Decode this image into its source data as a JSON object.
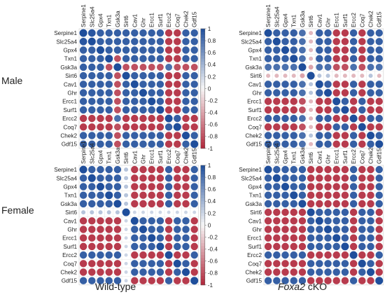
{
  "row_labels": [
    "Male",
    "Female"
  ],
  "col_labels": {
    "wildtype": "Wild-type",
    "cko_gene": "Foxa2",
    "cko_suffix": " cKO"
  },
  "colorbar_ticks": [
    "1",
    "0.8",
    "0.6",
    "0.4",
    "0.2",
    "0",
    "-0.2",
    "-0.4",
    "-0.6",
    "-0.8",
    "-1"
  ],
  "colors": {
    "positive": "#1f4e9b",
    "negative": "#b0263a",
    "zero": "#f7f7f7"
  },
  "chart_data": [
    {
      "type": "heatmap",
      "panel": "Male / Wild-type",
      "genes": [
        "Serpine1",
        "Slc25a4",
        "Gpx4",
        "Txn1",
        "Gsk3a",
        "Sirt6",
        "Cav1",
        "Ghr",
        "Ercc1",
        "Surf1",
        "Ercc2",
        "Coq7",
        "Chek2",
        "Gdf15"
      ],
      "value_range": [
        -1,
        1
      ],
      "matrix": [
        [
          1,
          0.95,
          0.9,
          0.9,
          0.9,
          0.9,
          0.9,
          0.9,
          0.9,
          0.9,
          -0.9,
          -0.9,
          0.9,
          0.9
        ],
        [
          0.95,
          1,
          0.9,
          0.9,
          0.9,
          0.9,
          0.9,
          0.9,
          0.9,
          0.9,
          -0.9,
          -0.9,
          0.9,
          0.9
        ],
        [
          0.9,
          0.9,
          1,
          0.9,
          0.9,
          0.9,
          0.9,
          0.9,
          0.9,
          0.9,
          -0.9,
          -0.9,
          0.9,
          0.9
        ],
        [
          0.9,
          0.9,
          0.9,
          1,
          -0.8,
          0.9,
          0.9,
          0.9,
          0.9,
          0.9,
          -0.9,
          -0.9,
          0.9,
          0.9
        ],
        [
          0.9,
          0.9,
          0.9,
          -0.8,
          1,
          -0.8,
          -0.8,
          -0.8,
          -0.8,
          -0.8,
          0.8,
          -0.8,
          -0.8,
          -0.8
        ],
        [
          0.9,
          0.9,
          0.9,
          0.9,
          -0.8,
          1,
          0.9,
          0.9,
          0.9,
          0.9,
          -0.9,
          -0.9,
          0.9,
          0.9
        ],
        [
          0.9,
          0.9,
          0.9,
          0.9,
          -0.8,
          0.9,
          1,
          0.9,
          0.9,
          0.9,
          -0.9,
          -0.9,
          0.9,
          0.9
        ],
        [
          0.9,
          0.9,
          0.9,
          0.9,
          -0.8,
          0.9,
          0.9,
          1,
          0.9,
          0.9,
          -0.9,
          -0.9,
          0.9,
          0.9
        ],
        [
          0.9,
          0.9,
          0.9,
          0.9,
          -0.8,
          0.9,
          0.9,
          0.9,
          1,
          0.9,
          -0.9,
          -0.9,
          0.9,
          0.9
        ],
        [
          0.9,
          0.9,
          0.9,
          0.9,
          -0.8,
          0.9,
          0.9,
          0.9,
          0.9,
          1,
          -0.9,
          -0.9,
          0.9,
          0.9
        ],
        [
          -0.9,
          -0.9,
          -0.9,
          -0.9,
          0.8,
          -0.9,
          -0.9,
          -0.9,
          -0.9,
          -0.9,
          1,
          0.9,
          -0.9,
          -0.9
        ],
        [
          -0.9,
          -0.9,
          -0.9,
          -0.9,
          -0.8,
          -0.9,
          -0.9,
          -0.9,
          -0.9,
          -0.9,
          0.9,
          1,
          -0.9,
          -0.9
        ],
        [
          0.9,
          0.9,
          0.9,
          0.9,
          -0.8,
          0.9,
          0.9,
          0.9,
          0.9,
          0.9,
          -0.9,
          -0.9,
          1,
          0.9
        ],
        [
          0.9,
          0.9,
          0.9,
          0.9,
          -0.8,
          0.9,
          0.9,
          0.9,
          0.9,
          0.9,
          -0.9,
          -0.9,
          0.9,
          1
        ]
      ]
    },
    {
      "type": "heatmap",
      "panel": "Male / Foxa2 cKO",
      "genes": [
        "Serpine1",
        "Slc25a4",
        "Gpx4",
        "Txn1",
        "Gsk3a",
        "Sirt6",
        "Cav1",
        "Ghr",
        "Ercc1",
        "Surf1",
        "Ercc2",
        "Coq7",
        "Chek2",
        "Gdf15"
      ],
      "value_range": [
        -1,
        1
      ],
      "matrix": [
        [
          1,
          0.9,
          0.9,
          0.9,
          0.8,
          -0.3,
          0.9,
          0.9,
          -0.9,
          -0.9,
          0.9,
          -0.9,
          0.9,
          0.9
        ],
        [
          0.9,
          1,
          0.9,
          0.9,
          0.8,
          -0.3,
          0.9,
          0.9,
          -0.9,
          -0.9,
          0.9,
          -0.9,
          0.9,
          0.9
        ],
        [
          0.9,
          0.9,
          1,
          0.9,
          0.8,
          -0.3,
          0.9,
          0.9,
          -0.9,
          -0.9,
          0.9,
          -0.9,
          0.9,
          0.9
        ],
        [
          0.9,
          0.9,
          0.9,
          1,
          0.8,
          -0.3,
          0.9,
          0.9,
          -0.9,
          -0.9,
          0.9,
          -0.9,
          0.9,
          0.9
        ],
        [
          0.8,
          0.8,
          0.8,
          0.8,
          1,
          -0.4,
          0.8,
          0.8,
          -0.8,
          -0.8,
          0.8,
          -0.8,
          0.8,
          0.8
        ],
        [
          -0.3,
          -0.3,
          -0.3,
          -0.3,
          -0.4,
          1,
          0.3,
          0.3,
          -0.3,
          -0.3,
          -0.3,
          -0.3,
          0.3,
          -0.3
        ],
        [
          0.9,
          0.9,
          0.9,
          0.9,
          0.8,
          0.3,
          1,
          0.9,
          -0.9,
          -0.9,
          0.9,
          -0.9,
          0.9,
          0.9
        ],
        [
          0.9,
          0.9,
          0.9,
          0.9,
          0.8,
          0.3,
          0.9,
          1,
          -0.9,
          -0.9,
          0.9,
          -0.9,
          0.9,
          0.9
        ],
        [
          -0.9,
          -0.9,
          -0.9,
          -0.9,
          -0.8,
          -0.3,
          -0.9,
          -0.9,
          1,
          0.9,
          -0.9,
          0.9,
          -0.9,
          -0.9
        ],
        [
          -0.9,
          -0.9,
          -0.9,
          -0.9,
          -0.8,
          -0.3,
          -0.9,
          -0.9,
          0.9,
          1,
          -0.9,
          0.9,
          -0.9,
          -0.9
        ],
        [
          0.9,
          0.9,
          0.9,
          0.9,
          0.8,
          -0.3,
          0.9,
          0.9,
          -0.9,
          -0.9,
          1,
          -0.9,
          0.9,
          0.9
        ],
        [
          -0.9,
          -0.9,
          -0.9,
          -0.9,
          -0.8,
          -0.3,
          -0.9,
          -0.9,
          0.9,
          0.9,
          -0.9,
          1,
          -0.9,
          -0.9
        ],
        [
          0.9,
          0.9,
          0.9,
          0.9,
          0.8,
          0.3,
          0.9,
          0.9,
          -0.9,
          -0.9,
          0.9,
          -0.9,
          1,
          0.9
        ],
        [
          0.9,
          0.9,
          0.9,
          0.9,
          0.8,
          -0.3,
          0.9,
          0.9,
          -0.9,
          -0.9,
          0.9,
          -0.9,
          0.9,
          1
        ]
      ]
    },
    {
      "type": "heatmap",
      "panel": "Female / Wild-type",
      "genes": [
        "Serpine1",
        "Slc25a4",
        "Gpx4",
        "Txn1",
        "Gsk3a",
        "Sirt6",
        "Cav1",
        "Ghr",
        "Ercc1",
        "Surf1",
        "Ercc2",
        "Coq7",
        "Chek2",
        "Gdf15"
      ],
      "value_range": [
        -1,
        1
      ],
      "matrix": [
        [
          1,
          0.9,
          0.9,
          0.9,
          0.9,
          0.3,
          -0.9,
          -0.9,
          -0.9,
          -0.9,
          0.9,
          -0.9,
          -0.9,
          0.9
        ],
        [
          0.9,
          1,
          0.9,
          0.9,
          0.9,
          0.3,
          -0.9,
          -0.9,
          -0.9,
          -0.9,
          0.9,
          -0.9,
          -0.9,
          0.9
        ],
        [
          0.9,
          0.9,
          1,
          0.9,
          0.9,
          0.3,
          -0.9,
          -0.9,
          -0.9,
          -0.9,
          0.9,
          -0.9,
          -0.9,
          0.9
        ],
        [
          0.9,
          0.9,
          0.9,
          1,
          0.9,
          0.3,
          -0.9,
          -0.9,
          -0.9,
          -0.9,
          0.9,
          -0.9,
          -0.9,
          0.9
        ],
        [
          0.9,
          0.9,
          0.9,
          0.9,
          1,
          0.3,
          -0.9,
          -0.9,
          -0.9,
          -0.9,
          0.9,
          -0.9,
          -0.9,
          0.9
        ],
        [
          0.3,
          0.3,
          0.3,
          0.3,
          0.3,
          1,
          0.2,
          0.2,
          0.2,
          0.2,
          0.2,
          0.2,
          0.2,
          0.2
        ],
        [
          -0.9,
          -0.9,
          -0.9,
          -0.9,
          -0.9,
          0.2,
          1,
          0.9,
          0.9,
          0.9,
          -0.9,
          0.9,
          0.9,
          -0.9
        ],
        [
          -0.9,
          -0.9,
          -0.9,
          -0.9,
          -0.9,
          0.2,
          0.9,
          1,
          0.9,
          0.9,
          -0.9,
          0.9,
          0.9,
          -0.9
        ],
        [
          -0.9,
          -0.9,
          -0.9,
          -0.9,
          -0.9,
          0.2,
          0.9,
          0.9,
          1,
          0.9,
          -0.9,
          0.9,
          0.9,
          -0.9
        ],
        [
          -0.9,
          -0.9,
          -0.9,
          -0.9,
          -0.9,
          0.2,
          0.9,
          0.9,
          0.9,
          1,
          -0.9,
          0.9,
          0.9,
          -0.9
        ],
        [
          0.9,
          0.9,
          0.9,
          0.9,
          0.9,
          0.2,
          -0.9,
          -0.9,
          -0.9,
          -0.9,
          1,
          -0.9,
          -0.9,
          0.9
        ],
        [
          -0.9,
          -0.9,
          -0.9,
          -0.9,
          -0.9,
          0.2,
          0.9,
          0.9,
          0.9,
          0.9,
          -0.9,
          1,
          0.9,
          -0.9
        ],
        [
          -0.9,
          -0.9,
          -0.9,
          -0.9,
          -0.9,
          0.2,
          0.9,
          0.9,
          0.9,
          0.9,
          -0.9,
          0.9,
          1,
          -0.9
        ],
        [
          0.9,
          0.9,
          0.9,
          0.9,
          0.9,
          0.2,
          -0.9,
          -0.9,
          -0.9,
          -0.9,
          0.9,
          -0.9,
          -0.9,
          1
        ]
      ]
    },
    {
      "type": "heatmap",
      "panel": "Female / Foxa2 cKO",
      "genes": [
        "Serpine1",
        "Slc25a4",
        "Gpx4",
        "Txn1",
        "Gsk3a",
        "Sirt6",
        "Cav1",
        "Ghr",
        "Ercc1",
        "Surf1",
        "Ercc2",
        "Coq7",
        "Chek2",
        "Gdf15"
      ],
      "value_range": [
        -1,
        1
      ],
      "matrix": [
        [
          1,
          0.9,
          0.9,
          0.9,
          0.9,
          -0.9,
          -0.9,
          -0.9,
          -0.9,
          -0.9,
          0.9,
          -0.9,
          -0.9,
          0.9
        ],
        [
          0.9,
          1,
          0.9,
          0.9,
          0.9,
          -0.9,
          -0.9,
          -0.9,
          -0.9,
          -0.9,
          0.9,
          -0.9,
          -0.9,
          0.9
        ],
        [
          0.9,
          0.9,
          1,
          0.9,
          0.9,
          -0.9,
          -0.9,
          -0.9,
          -0.9,
          -0.9,
          0.9,
          -0.9,
          -0.9,
          0.9
        ],
        [
          0.9,
          0.9,
          0.9,
          1,
          0.9,
          -0.9,
          -0.9,
          -0.9,
          -0.9,
          -0.9,
          0.9,
          -0.9,
          -0.9,
          0.9
        ],
        [
          0.9,
          0.9,
          0.9,
          0.9,
          1,
          -0.9,
          -0.9,
          -0.9,
          -0.9,
          -0.9,
          0.9,
          -0.9,
          -0.9,
          0.9
        ],
        [
          -0.9,
          -0.9,
          -0.9,
          -0.9,
          -0.9,
          1,
          0.9,
          0.9,
          0.9,
          0.9,
          -0.9,
          0.9,
          0.9,
          -0.9
        ],
        [
          -0.9,
          -0.9,
          -0.9,
          -0.9,
          -0.9,
          0.9,
          1,
          0.9,
          0.9,
          0.9,
          -0.9,
          0.9,
          0.9,
          -0.9
        ],
        [
          -0.9,
          -0.9,
          -0.9,
          -0.9,
          -0.9,
          0.9,
          0.9,
          1,
          0.9,
          0.9,
          -0.9,
          0.9,
          0.9,
          -0.9
        ],
        [
          -0.9,
          -0.9,
          -0.9,
          -0.9,
          -0.9,
          0.9,
          0.9,
          0.9,
          1,
          0.9,
          -0.9,
          0.9,
          0.9,
          -0.9
        ],
        [
          -0.9,
          -0.9,
          -0.9,
          -0.9,
          -0.9,
          0.9,
          0.9,
          0.9,
          0.9,
          1,
          -0.9,
          0.9,
          0.9,
          -0.9
        ],
        [
          0.9,
          0.9,
          0.9,
          0.9,
          0.9,
          -0.9,
          -0.9,
          -0.9,
          -0.9,
          -0.9,
          1,
          -0.9,
          -0.9,
          0.9
        ],
        [
          -0.9,
          -0.9,
          -0.9,
          -0.9,
          -0.9,
          0.9,
          0.9,
          0.9,
          0.9,
          0.9,
          -0.9,
          1,
          0.9,
          -0.9
        ],
        [
          -0.9,
          -0.9,
          -0.9,
          -0.9,
          -0.9,
          0.9,
          0.9,
          0.9,
          0.9,
          0.9,
          -0.9,
          0.9,
          1,
          -0.9
        ],
        [
          0.9,
          0.9,
          0.9,
          0.9,
          0.9,
          -0.9,
          -0.9,
          -0.9,
          -0.9,
          -0.9,
          0.9,
          -0.9,
          -0.9,
          1
        ]
      ]
    }
  ]
}
